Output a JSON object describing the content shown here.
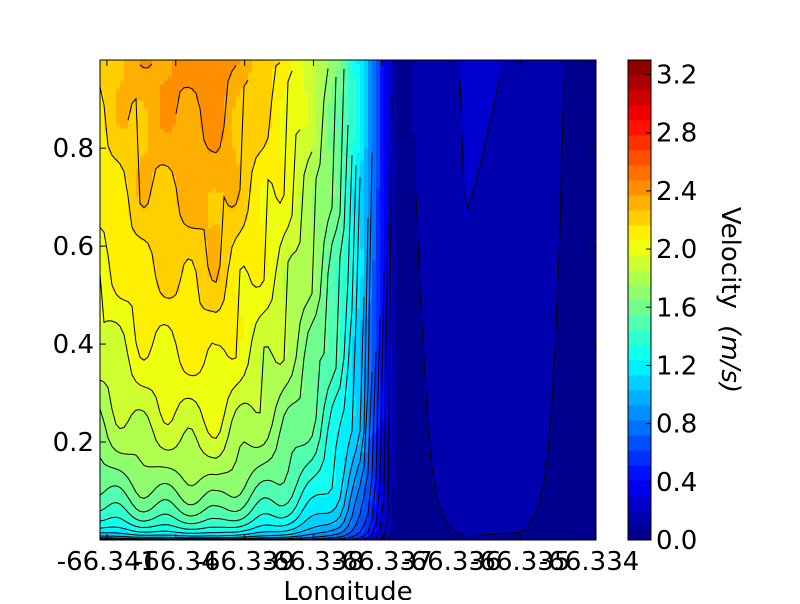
{
  "chart_data": {
    "type": "contour",
    "xlabel": "Longitude",
    "ylabel": "",
    "x_ticks": [
      "-66.341",
      "-66.34",
      "-66.339",
      "-66.338",
      "-66.337",
      "-66.336",
      "-66.335",
      "-66.334"
    ],
    "y_ticks": [
      "0.2",
      "0.4",
      "0.6",
      "0.8"
    ],
    "xlim": [
      -66.3411,
      -66.3339
    ],
    "ylim": [
      0.0,
      0.98
    ],
    "colorbar": {
      "label": "Velocity",
      "units": "(m/s)",
      "ticks": [
        "0.0",
        "0.4",
        "0.8",
        "1.2",
        "1.6",
        "2.0",
        "2.4",
        "2.8",
        "3.2"
      ],
      "range": [
        0.0,
        3.3
      ],
      "colormap": "jet"
    },
    "velocity_profile": {
      "longitude": [
        -66.3411,
        -66.3405,
        -66.34,
        -66.3394,
        -66.339,
        -66.3385,
        -66.338,
        -66.3376,
        -66.3373,
        -66.337,
        -66.3368,
        -66.3364,
        -66.3358,
        -66.335,
        -66.3345,
        -66.334,
        -66.3339
      ],
      "velocity": [
        2.2,
        2.35,
        2.4,
        2.45,
        2.3,
        2.15,
        1.9,
        1.6,
        1.2,
        0.5,
        0.08,
        0.12,
        0.22,
        0.2,
        0.12,
        0.06,
        0.05
      ]
    }
  }
}
